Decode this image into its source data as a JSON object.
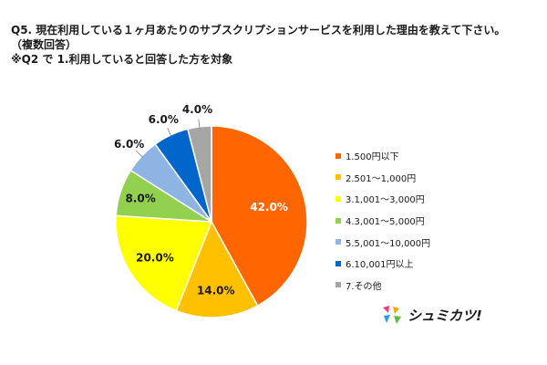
{
  "header": {
    "question": "Q5. 現在利用している１ヶ月あたりのサブスクリプションサービスを利用した理由を教えて下さい。",
    "note": "（複数回答）",
    "target": "※Q2 で 1.利用していると回答した方を対象"
  },
  "chart_data": {
    "type": "pie",
    "start_angle_deg": 0,
    "direction": "clockwise",
    "legend_position": "right",
    "slices": [
      {
        "label": "1.500円以下",
        "value": 42.0,
        "display": "42.0%",
        "color": "#ff6600"
      },
      {
        "label": "2.501～1,000円",
        "value": 14.0,
        "display": "14.0%",
        "color": "#ffc000"
      },
      {
        "label": "3.1,001～3,000円",
        "value": 20.0,
        "display": "20.0%",
        "color": "#ffff00"
      },
      {
        "label": "4.3,001～5,000円",
        "value": 8.0,
        "display": "8.0%",
        "color": "#92d050"
      },
      {
        "label": "5.5,001～10,000円",
        "value": 6.0,
        "display": "6.0%",
        "color": "#8db4e2"
      },
      {
        "label": "6.10,001円以上",
        "value": 6.0,
        "display": "6.0%",
        "color": "#0066cc"
      },
      {
        "label": "7.その他",
        "value": 4.0,
        "display": "4.0%",
        "color": "#a6a6a6"
      }
    ]
  },
  "logo": {
    "text": "シュミカツ!",
    "colors": [
      "#e83e8c",
      "#ffa500",
      "#2e9be0",
      "#5bbf3e"
    ]
  }
}
